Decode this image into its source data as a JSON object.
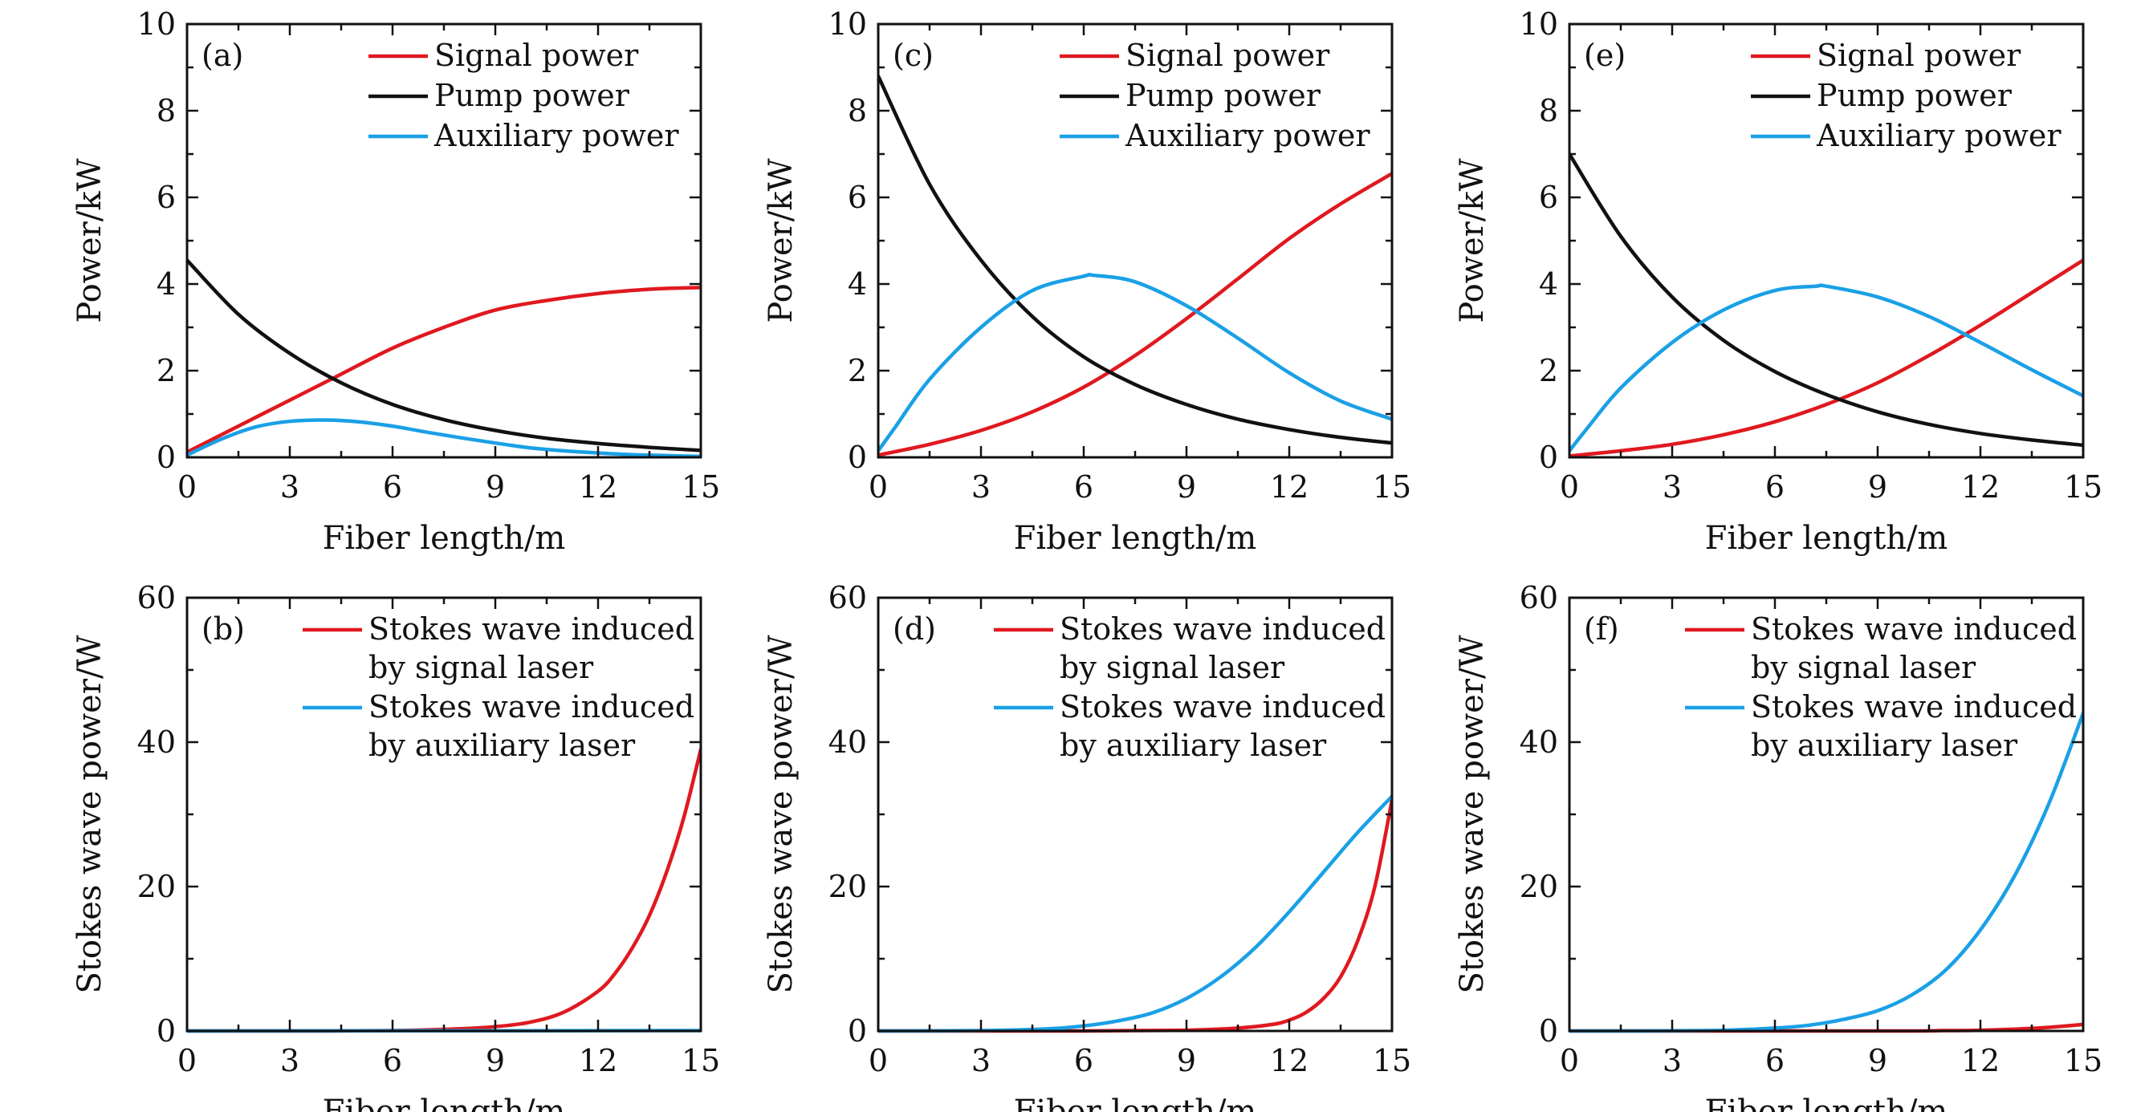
{
  "colors": {
    "signal": "#e0191f",
    "pump": "#111111",
    "auxiliary": "#1aa0e6",
    "axis": "#111111"
  },
  "chart_data": [
    {
      "panel": "(a)",
      "type": "line",
      "xlabel": "Fiber length/m",
      "ylabel": "Power/kW",
      "xlim": [
        0,
        15
      ],
      "ylim": [
        0,
        10
      ],
      "xticks": [
        0,
        3,
        6,
        9,
        12,
        15
      ],
      "yticks": [
        0,
        2,
        4,
        6,
        8,
        10
      ],
      "legend_position": "top-right",
      "series": [
        {
          "name": "Signal power",
          "color_key": "signal",
          "x": [
            0,
            1.5,
            3,
            4.5,
            6,
            7.5,
            9,
            10.5,
            12,
            13.5,
            15
          ],
          "y": [
            0.12,
            0.72,
            1.32,
            1.92,
            2.52,
            3.0,
            3.4,
            3.62,
            3.78,
            3.88,
            3.92
          ]
        },
        {
          "name": "Pump power",
          "color_key": "pump",
          "x": [
            0,
            1.5,
            3,
            4.5,
            6,
            7.5,
            9,
            10.5,
            12,
            13.5,
            15
          ],
          "y": [
            4.55,
            3.3,
            2.4,
            1.72,
            1.22,
            0.87,
            0.62,
            0.44,
            0.32,
            0.23,
            0.16
          ]
        },
        {
          "name": "Auxiliary power",
          "color_key": "auxiliary",
          "x": [
            0,
            1,
            2,
            3,
            4,
            5,
            6,
            7,
            8,
            9,
            10,
            11,
            12,
            13,
            14,
            15
          ],
          "y": [
            0.05,
            0.42,
            0.7,
            0.83,
            0.86,
            0.82,
            0.72,
            0.58,
            0.45,
            0.33,
            0.22,
            0.15,
            0.1,
            0.06,
            0.04,
            0.02
          ]
        }
      ]
    },
    {
      "panel": "(c)",
      "type": "line",
      "xlabel": "Fiber length/m",
      "ylabel": "Power/kW",
      "xlim": [
        0,
        15
      ],
      "ylim": [
        0,
        10
      ],
      "xticks": [
        0,
        3,
        6,
        9,
        12,
        15
      ],
      "yticks": [
        0,
        2,
        4,
        6,
        8,
        10
      ],
      "legend_position": "top-right",
      "series": [
        {
          "name": "Signal power",
          "color_key": "signal",
          "x": [
            0,
            1.5,
            3,
            4.5,
            6,
            7.5,
            9,
            10.5,
            12,
            13.5,
            15
          ],
          "y": [
            0.05,
            0.3,
            0.62,
            1.05,
            1.62,
            2.35,
            3.2,
            4.12,
            5.05,
            5.85,
            6.55
          ]
        },
        {
          "name": "Pump power",
          "color_key": "pump",
          "x": [
            0,
            1.5,
            3,
            4.5,
            6,
            7.5,
            9,
            10.5,
            12,
            13.5,
            15
          ],
          "y": [
            8.8,
            6.3,
            4.55,
            3.25,
            2.32,
            1.68,
            1.22,
            0.88,
            0.64,
            0.46,
            0.33
          ]
        },
        {
          "name": "Auxiliary power",
          "color_key": "auxiliary",
          "x": [
            0,
            0.5,
            1.5,
            3,
            4.5,
            6,
            6.3,
            7.5,
            9,
            10.5,
            12,
            13.5,
            15
          ],
          "y": [
            0.15,
            0.7,
            1.8,
            3.0,
            3.85,
            4.18,
            4.2,
            4.05,
            3.5,
            2.75,
            1.95,
            1.3,
            0.88
          ]
        }
      ]
    },
    {
      "panel": "(e)",
      "type": "line",
      "xlabel": "Fiber length/m",
      "ylabel": "Power/kW",
      "xlim": [
        0,
        15
      ],
      "ylim": [
        0,
        10
      ],
      "xticks": [
        0,
        3,
        6,
        9,
        12,
        15
      ],
      "yticks": [
        0,
        2,
        4,
        6,
        8,
        10
      ],
      "legend_position": "top-right",
      "series": [
        {
          "name": "Signal power",
          "color_key": "signal",
          "x": [
            0,
            1.5,
            3,
            4.5,
            6,
            7.5,
            9,
            10.5,
            12,
            13.5,
            15
          ],
          "y": [
            0.03,
            0.15,
            0.3,
            0.52,
            0.82,
            1.22,
            1.72,
            2.35,
            3.05,
            3.8,
            4.55
          ]
        },
        {
          "name": "Pump power",
          "color_key": "pump",
          "x": [
            0,
            1.5,
            3,
            4.5,
            6,
            7.5,
            9,
            10.5,
            12,
            13.5,
            15
          ],
          "y": [
            7.0,
            5.1,
            3.7,
            2.7,
            1.98,
            1.45,
            1.05,
            0.76,
            0.55,
            0.4,
            0.28
          ]
        },
        {
          "name": "Auxiliary power",
          "color_key": "auxiliary",
          "x": [
            0,
            0.5,
            1.5,
            3,
            4.5,
            6,
            7.2,
            7.5,
            9,
            10.5,
            12,
            13.5,
            15
          ],
          "y": [
            0.15,
            0.65,
            1.6,
            2.65,
            3.4,
            3.85,
            3.95,
            3.95,
            3.7,
            3.25,
            2.65,
            2.02,
            1.42
          ]
        }
      ]
    },
    {
      "panel": "(b)",
      "type": "line",
      "xlabel": "Fiber length/m",
      "ylabel": "Stokes wave power/W",
      "xlim": [
        0,
        15
      ],
      "ylim": [
        0,
        60
      ],
      "xticks": [
        0,
        3,
        6,
        9,
        12,
        15
      ],
      "yticks": [
        0,
        20,
        40,
        60
      ],
      "legend_position": "top-right",
      "legend": [
        {
          "line1": "Stokes wave induced",
          "line2": "by signal laser",
          "color_key": "signal"
        },
        {
          "line1": "Stokes wave induced",
          "line2": "by auxiliary laser",
          "color_key": "auxiliary"
        }
      ],
      "series": [
        {
          "name": "Stokes wave induced by signal laser",
          "color_key": "signal",
          "x": [
            0,
            3,
            6,
            8,
            9,
            10,
            11,
            12,
            12.5,
            13,
            13.5,
            14,
            14.5,
            15
          ],
          "y": [
            0,
            0,
            0.05,
            0.3,
            0.6,
            1.2,
            2.6,
            5.5,
            8.0,
            11.5,
            16.0,
            22.0,
            29.5,
            39.0
          ]
        },
        {
          "name": "Stokes wave induced by auxiliary laser",
          "color_key": "auxiliary",
          "x": [
            0,
            15
          ],
          "y": [
            0,
            0.05
          ]
        }
      ]
    },
    {
      "panel": "(d)",
      "type": "line",
      "xlabel": "Fiber length/m",
      "ylabel": "Stokes wave power/W",
      "xlim": [
        0,
        15
      ],
      "ylim": [
        0,
        60
      ],
      "xticks": [
        0,
        3,
        6,
        9,
        12,
        15
      ],
      "yticks": [
        0,
        20,
        40,
        60
      ],
      "legend_position": "top-right",
      "legend": [
        {
          "line1": "Stokes wave induced",
          "line2": "by signal laser",
          "color_key": "signal"
        },
        {
          "line1": "Stokes wave induced",
          "line2": "by auxiliary laser",
          "color_key": "auxiliary"
        }
      ],
      "series": [
        {
          "name": "Stokes wave induced by signal laser",
          "color_key": "signal",
          "x": [
            0,
            6,
            9,
            10.5,
            11.5,
            12,
            12.5,
            13,
            13.5,
            14,
            14.5,
            15
          ],
          "y": [
            0,
            0,
            0.1,
            0.4,
            0.9,
            1.5,
            2.6,
            4.5,
            7.5,
            12.5,
            20.0,
            32.0
          ]
        },
        {
          "name": "Stokes wave induced by auxiliary laser",
          "color_key": "auxiliary",
          "x": [
            0,
            3,
            5,
            6,
            7,
            8,
            9,
            10,
            11,
            12,
            13,
            14,
            15
          ],
          "y": [
            0,
            0.05,
            0.3,
            0.7,
            1.4,
            2.5,
            4.5,
            7.5,
            11.5,
            16.5,
            22.0,
            27.5,
            32.5
          ]
        }
      ]
    },
    {
      "panel": "(f)",
      "type": "line",
      "xlabel": "Fiber length/m",
      "ylabel": "Stokes wave power/W",
      "xlim": [
        0,
        15
      ],
      "ylim": [
        0,
        60
      ],
      "xticks": [
        0,
        3,
        6,
        9,
        12,
        15
      ],
      "yticks": [
        0,
        20,
        40,
        60
      ],
      "legend_position": "top-right",
      "legend": [
        {
          "line1": "Stokes wave induced",
          "line2": "by signal laser",
          "color_key": "signal"
        },
        {
          "line1": "Stokes wave induced",
          "line2": "by auxiliary laser",
          "color_key": "auxiliary"
        }
      ],
      "series": [
        {
          "name": "Stokes wave induced by signal laser",
          "color_key": "signal",
          "x": [
            0,
            9,
            11,
            12,
            13,
            14,
            15
          ],
          "y": [
            0,
            0,
            0.05,
            0.1,
            0.25,
            0.5,
            0.9
          ]
        },
        {
          "name": "Stokes wave induced by auxiliary laser",
          "color_key": "auxiliary",
          "x": [
            0,
            4,
            6,
            7,
            8,
            9,
            10,
            11,
            12,
            13,
            14,
            15
          ],
          "y": [
            0,
            0.05,
            0.4,
            0.8,
            1.6,
            2.8,
            5.0,
            8.5,
            14.0,
            21.5,
            31.5,
            44.0
          ]
        }
      ]
    }
  ]
}
